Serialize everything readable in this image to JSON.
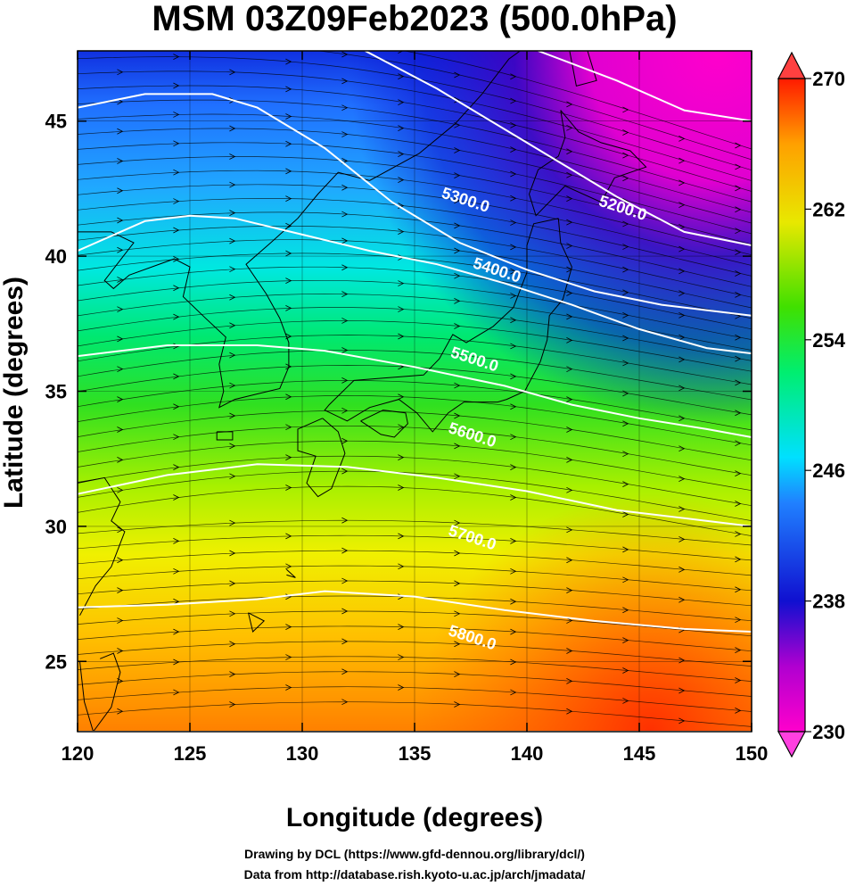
{
  "title": "MSM 03Z09Feb2023 (500.0hPa)",
  "credits": {
    "line1": "Drawing by DCL (https://www.gfd-dennou.org/library/dcl/)",
    "line2": "Data from http://database.rish.kyoto-u.ac.jp/arch/jmadata/"
  },
  "chart_data": {
    "type": "heatmap",
    "xlabel": "Longitude (degrees)",
    "ylabel": "Latitude  (degrees)",
    "xlim": [
      120,
      150
    ],
    "ylim": [
      22.4,
      47.6
    ],
    "xticks": [
      120,
      125,
      130,
      135,
      140,
      145,
      150
    ],
    "yticks": [
      25,
      30,
      35,
      40,
      45
    ],
    "grid": true,
    "colorbar": {
      "range": [
        230,
        270
      ],
      "ticks": [
        270,
        262,
        254,
        246,
        238,
        230
      ],
      "colormap": [
        "#ff00cc",
        "#9000c0",
        "#1010d0",
        "#2080ff",
        "#00e0ff",
        "#00ee70",
        "#40e000",
        "#e8e800",
        "#ffa000",
        "#ff1a00"
      ],
      "extend": "both"
    },
    "contours": [
      {
        "label": "5200.0",
        "value": 5200,
        "lon": [
          132.8,
          136,
          140,
          144,
          147,
          150
        ],
        "lat": [
          47.6,
          46.2,
          44.2,
          42.2,
          40.9,
          40.4
        ]
      },
      {
        "label": "5300.0",
        "value": 5300,
        "lon": [
          140.5,
          144,
          147,
          150
        ],
        "lat": [
          47.6,
          46.5,
          45.4,
          45.0
        ]
      },
      {
        "label": "5300.0",
        "value": 5300,
        "lon": [
          120,
          123,
          126,
          128,
          131,
          134,
          137,
          140,
          143,
          146,
          150
        ],
        "lat": [
          45.5,
          46.0,
          46.0,
          45.5,
          44.0,
          42.0,
          40.5,
          39.5,
          38.7,
          38.2,
          37.8
        ]
      },
      {
        "label": "5400.0",
        "value": 5400,
        "lon": [
          120,
          123,
          125,
          127,
          130,
          133,
          136,
          139,
          142,
          145,
          148,
          150
        ],
        "lat": [
          40.2,
          41.3,
          41.5,
          41.4,
          40.8,
          40.2,
          39.7,
          39.0,
          38.2,
          37.3,
          36.6,
          36.4
        ]
      },
      {
        "label": "5500.0",
        "value": 5500,
        "lon": [
          120,
          124,
          128,
          131,
          135,
          139,
          142,
          145,
          148,
          150
        ],
        "lat": [
          36.3,
          36.7,
          36.7,
          36.5,
          35.9,
          35.2,
          34.5,
          34.0,
          33.6,
          33.3
        ]
      },
      {
        "label": "5600.0",
        "value": 5600,
        "lon": [
          120,
          124,
          128,
          132,
          136,
          140,
          144,
          147,
          150
        ],
        "lat": [
          31.2,
          31.9,
          32.3,
          32.2,
          31.8,
          31.3,
          30.6,
          30.3,
          30.0
        ]
      },
      {
        "label": "5700.0",
        "value": 5700,
        "lon": [
          120,
          124,
          128,
          131,
          135,
          139,
          143,
          147,
          150
        ],
        "lat": [
          27.0,
          27.1,
          27.3,
          27.6,
          27.4,
          26.9,
          26.5,
          26.2,
          26.1
        ]
      },
      {
        "label": "5800.0",
        "value": 5800,
        "lon": [
          120,
          150
        ],
        "lat": [
          22.4,
          22.4
        ]
      }
    ],
    "contour_labels": [
      {
        "text": "5200.0",
        "lon": 144.2,
        "lat": 41.6
      },
      {
        "text": "5300.0",
        "lon": 137.2,
        "lat": 41.9
      },
      {
        "text": "5400.0",
        "lon": 138.6,
        "lat": 39.3
      },
      {
        "text": "5500.0",
        "lon": 137.6,
        "lat": 36.0
      },
      {
        "text": "5600.0",
        "lon": 137.5,
        "lat": 33.2
      },
      {
        "text": "5700.0",
        "lon": 137.5,
        "lat": 29.4
      },
      {
        "text": "5800.0",
        "lon": 137.5,
        "lat": 25.7
      }
    ]
  }
}
